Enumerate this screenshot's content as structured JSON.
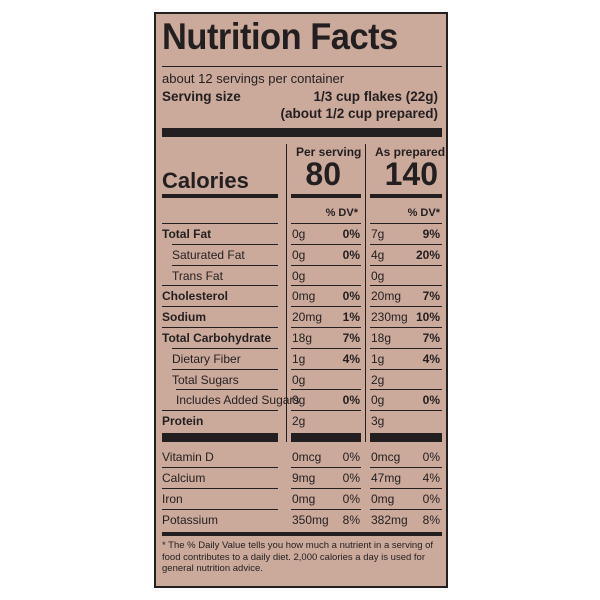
{
  "title": "Nutrition Facts",
  "servings_per_container": "about 12 servings per container",
  "serving_size_label": "Serving size",
  "serving_size_value": "1/3 cup flakes (22g)",
  "serving_size_value2": "(about 1/2 cup prepared)",
  "col1_header": "Per serving",
  "col2_header": "As prepared",
  "calories_label": "Calories",
  "calories_col1": "80",
  "calories_col2": "140",
  "dv_header": "% DV*",
  "nutrients": [
    {
      "name": "Total Fat",
      "a1": "0g",
      "d1": "0%",
      "a2": "7g",
      "d2": "9%"
    },
    {
      "name": "Saturated Fat",
      "a1": "0g",
      "d1": "0%",
      "a2": "4g",
      "d2": "20%"
    },
    {
      "name": "Trans Fat",
      "a1": "0g",
      "d1": "",
      "a2": "0g",
      "d2": ""
    },
    {
      "name": "Cholesterol",
      "a1": "0mg",
      "d1": "0%",
      "a2": "20mg",
      "d2": "7%"
    },
    {
      "name": "Sodium",
      "a1": "20mg",
      "d1": "1%",
      "a2": "230mg",
      "d2": "10%"
    },
    {
      "name": "Total Carbohydrate",
      "a1": "18g",
      "d1": "7%",
      "a2": "18g",
      "d2": "7%"
    },
    {
      "name": "Dietary Fiber",
      "a1": "1g",
      "d1": "4%",
      "a2": "1g",
      "d2": "4%"
    },
    {
      "name": "Total Sugars",
      "a1": "0g",
      "d1": "",
      "a2": "2g",
      "d2": ""
    },
    {
      "name": "Includes Added Sugars",
      "a1": "0g",
      "d1": "0%",
      "a2": "0g",
      "d2": "0%"
    },
    {
      "name": "Protein",
      "a1": "2g",
      "d1": "",
      "a2": "3g",
      "d2": ""
    }
  ],
  "vitamins": [
    {
      "name": "Vitamin D",
      "a1": "0mcg",
      "d1": "0%",
      "a2": "0mcg",
      "d2": "0%"
    },
    {
      "name": "Calcium",
      "a1": "9mg",
      "d1": "0%",
      "a2": "47mg",
      "d2": "4%"
    },
    {
      "name": "Iron",
      "a1": "0mg",
      "d1": "0%",
      "a2": "0mg",
      "d2": "0%"
    },
    {
      "name": "Potassium",
      "a1": "350mg",
      "d1": "8%",
      "a2": "382mg",
      "d2": "8%"
    }
  ],
  "footnote": "* The % Daily Value tells you how much a nutrient in a serving of food contributes to a daily diet. 2,000 calories a day is used for general nutrition advice.",
  "colors": {
    "panel": "#cba99b",
    "ink": "#231f20"
  }
}
